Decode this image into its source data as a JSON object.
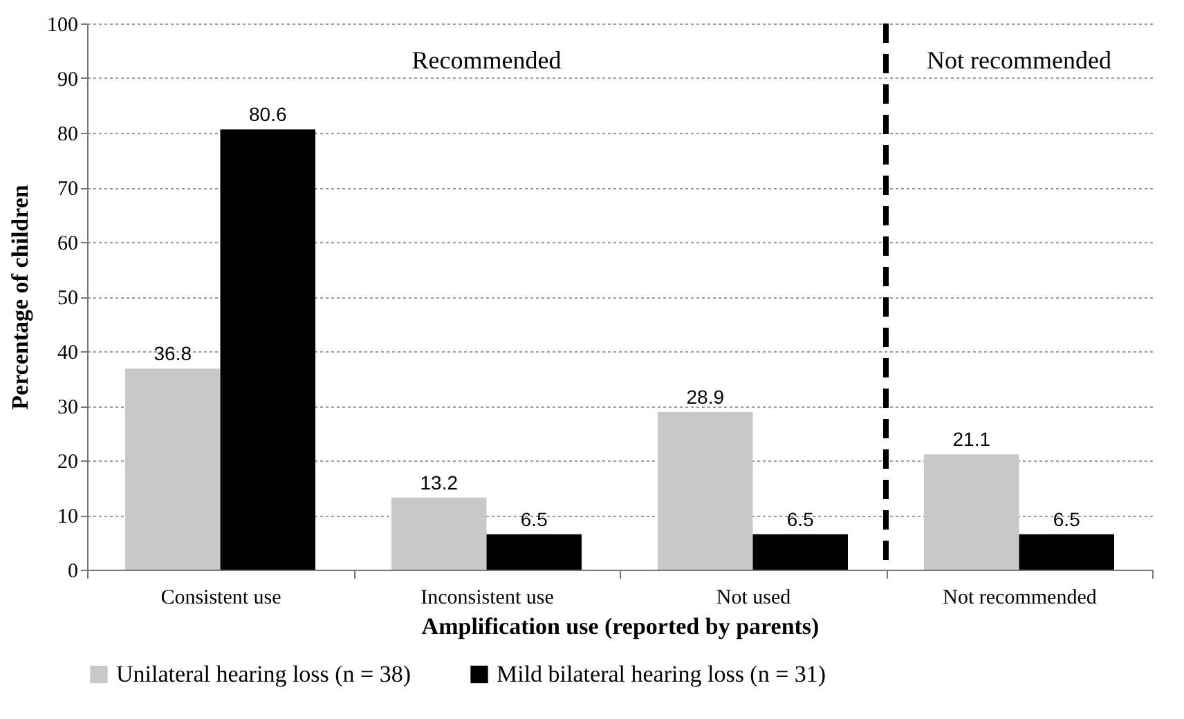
{
  "chart_data": {
    "type": "bar",
    "xlabel": "Amplification use (reported by parents)",
    "ylabel": "Percentage of children",
    "categories": [
      "Consistent use",
      "Inconsistent use",
      "Not used",
      "Not recommended"
    ],
    "series": [
      {
        "name": "Unilateral hearing loss (n = 38)",
        "color": "#c8c8c8",
        "values": [
          36.8,
          13.2,
          28.9,
          21.1
        ]
      },
      {
        "name": "Mild bilateral hearing loss (n = 31)",
        "color": "#000000",
        "values": [
          80.6,
          6.5,
          6.5,
          6.5
        ]
      }
    ],
    "ylim": [
      0,
      100
    ],
    "yticks": [
      0,
      10,
      20,
      30,
      40,
      50,
      60,
      70,
      80,
      90,
      100
    ],
    "grid": "y",
    "legend": "bottom",
    "marker": "square",
    "data_labels": true,
    "ref_lines": [
      {
        "axis": "x",
        "value": "Not recommended",
        "line_style": "dashed",
        "color": "#000000"
      }
    ],
    "annotations": [
      "Recommended",
      "Not recommended"
    ]
  }
}
